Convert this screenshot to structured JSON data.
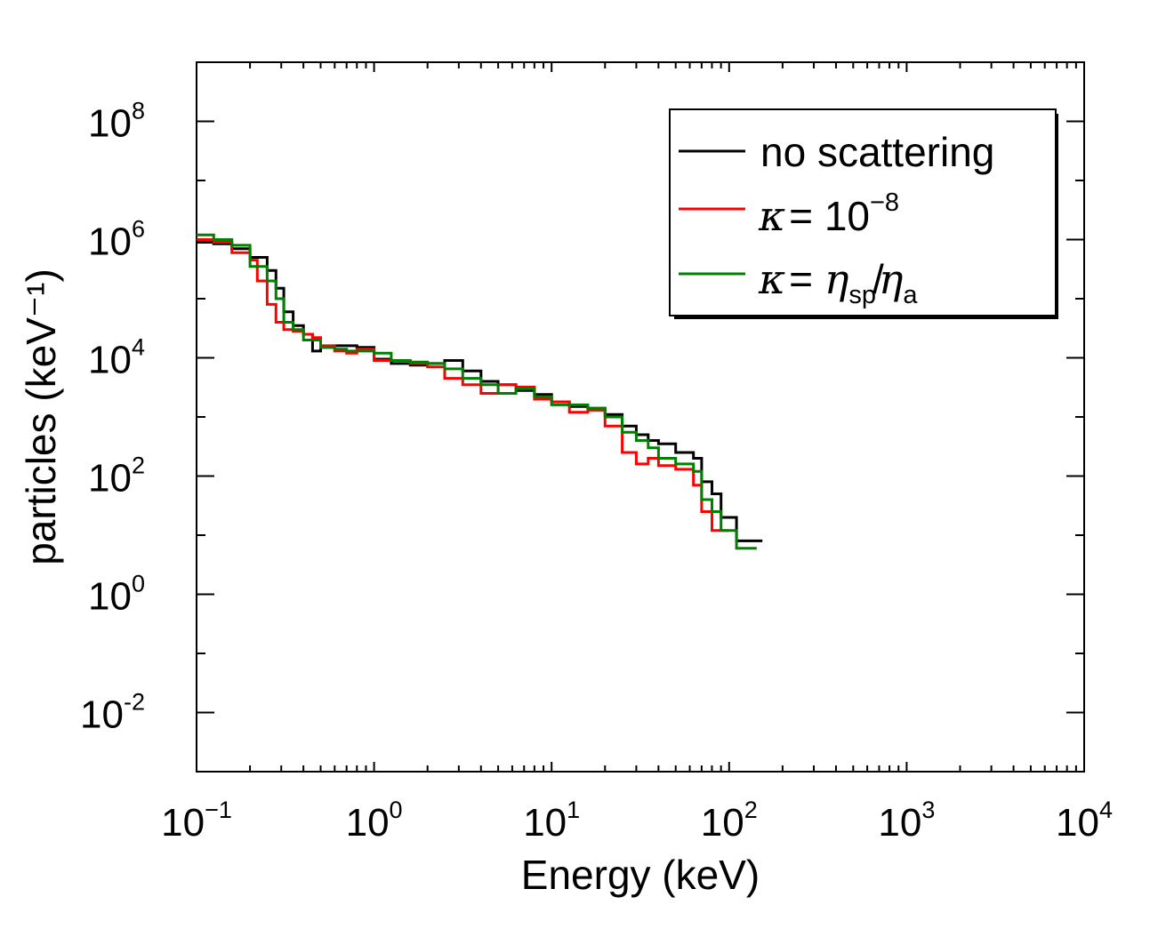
{
  "chart_data": {
    "type": "line",
    "step": true,
    "xscale": "log",
    "yscale": "log",
    "xlabel": "Energy (keV)",
    "ylabel": "particles (keV⁻¹)",
    "xlim": [
      0.1,
      10000
    ],
    "ylim": [
      0.001,
      1000000000
    ],
    "x_ticks": [
      {
        "base": "10",
        "exp": "−1"
      },
      {
        "base": "10",
        "exp": "0"
      },
      {
        "base": "10",
        "exp": "1"
      },
      {
        "base": "10",
        "exp": "2"
      },
      {
        "base": "10",
        "exp": "3"
      },
      {
        "base": "10",
        "exp": "4"
      }
    ],
    "y_ticks": [
      {
        "base": "10",
        "exp": "-2",
        "value": 0.01
      },
      {
        "base": "10",
        "exp": "0",
        "value": 1
      },
      {
        "base": "10",
        "exp": "2",
        "value": 100
      },
      {
        "base": "10",
        "exp": "4",
        "value": 10000
      },
      {
        "base": "10",
        "exp": "6",
        "value": 1000000
      },
      {
        "base": "10",
        "exp": "8",
        "value": 100000000
      }
    ],
    "legend": {
      "position": "top-right",
      "entries": [
        {
          "text": "no scattering",
          "color": "#000000"
        },
        {
          "kappa": "κ",
          "eq": "= 10",
          "exp": "−8",
          "color": "#ff0000"
        },
        {
          "kappa": "κ",
          "eq": "= ",
          "eta1": "η",
          "sub1": "sp",
          "slash": "/",
          "eta2": "η",
          "sub2": "a",
          "color": "#008000"
        }
      ]
    },
    "series": [
      {
        "name": "no scattering",
        "color": "#000000",
        "x": [
          0.1,
          0.125,
          0.158,
          0.2,
          0.25,
          0.28,
          0.31,
          0.35,
          0.4,
          0.45,
          0.5,
          0.6,
          0.7,
          0.8,
          1.0,
          1.25,
          1.6,
          2.0,
          2.5,
          3.16,
          4.0,
          5.0,
          6.3,
          8.0,
          10.0,
          12.6,
          16.0,
          20.0,
          25.0,
          30.0,
          35.0,
          40.0,
          50.0,
          63.0,
          70.0,
          80.0,
          90.0,
          110.0,
          140.0
        ],
        "y": [
          900000,
          850000,
          700000,
          500000,
          300000,
          150000,
          60000,
          35000,
          25000,
          13000,
          15000,
          16000,
          16000,
          15000,
          9500,
          8000,
          7500,
          8000,
          9000,
          6000,
          4000,
          3500,
          2800,
          2400,
          1800,
          1500,
          1400,
          1100,
          700,
          500,
          400,
          350,
          250,
          200,
          80,
          50,
          20,
          8,
          8
        ]
      },
      {
        "name": "κ = 10⁻⁸",
        "color": "#ff0000",
        "x": [
          0.1,
          0.125,
          0.158,
          0.2,
          0.22,
          0.25,
          0.28,
          0.31,
          0.35,
          0.4,
          0.45,
          0.5,
          0.6,
          0.7,
          0.8,
          1.0,
          1.25,
          1.6,
          2.0,
          2.5,
          3.16,
          4.0,
          5.0,
          6.3,
          8.0,
          10.0,
          12.6,
          16.0,
          20.0,
          25.0,
          30.0,
          35.0,
          40.0,
          50.0,
          63.0,
          70.0,
          80.0,
          90.0
        ],
        "y": [
          1000000,
          900000,
          600000,
          450000,
          200000,
          80000,
          40000,
          30000,
          28000,
          25000,
          22000,
          16000,
          13000,
          12000,
          14000,
          9000,
          9000,
          8000,
          7000,
          4500,
          3500,
          2500,
          3500,
          3200,
          2000,
          1800,
          1200,
          1300,
          700,
          250,
          160,
          200,
          150,
          130,
          70,
          25,
          12,
          12
        ]
      },
      {
        "name": "κ = ηsp/ηa",
        "color": "#008000",
        "x": [
          0.1,
          0.125,
          0.158,
          0.2,
          0.25,
          0.28,
          0.31,
          0.35,
          0.4,
          0.5,
          0.6,
          0.7,
          0.8,
          1.0,
          1.25,
          1.6,
          2.0,
          2.5,
          3.16,
          4.0,
          5.0,
          6.3,
          8.0,
          10.0,
          12.6,
          16.0,
          20.0,
          25.0,
          30.0,
          35.0,
          40.0,
          50.0,
          63.0,
          70.0,
          80.0,
          90.0,
          110.0,
          130.0
        ],
        "y": [
          1200000,
          1000000,
          800000,
          350000,
          200000,
          100000,
          40000,
          30000,
          20000,
          15000,
          14000,
          13000,
          13000,
          12000,
          9000,
          8500,
          8000,
          6500,
          4500,
          3500,
          2500,
          3000,
          2200,
          1600,
          1600,
          1400,
          1000,
          550,
          400,
          300,
          200,
          160,
          120,
          40,
          25,
          12,
          6,
          6
        ]
      }
    ]
  }
}
